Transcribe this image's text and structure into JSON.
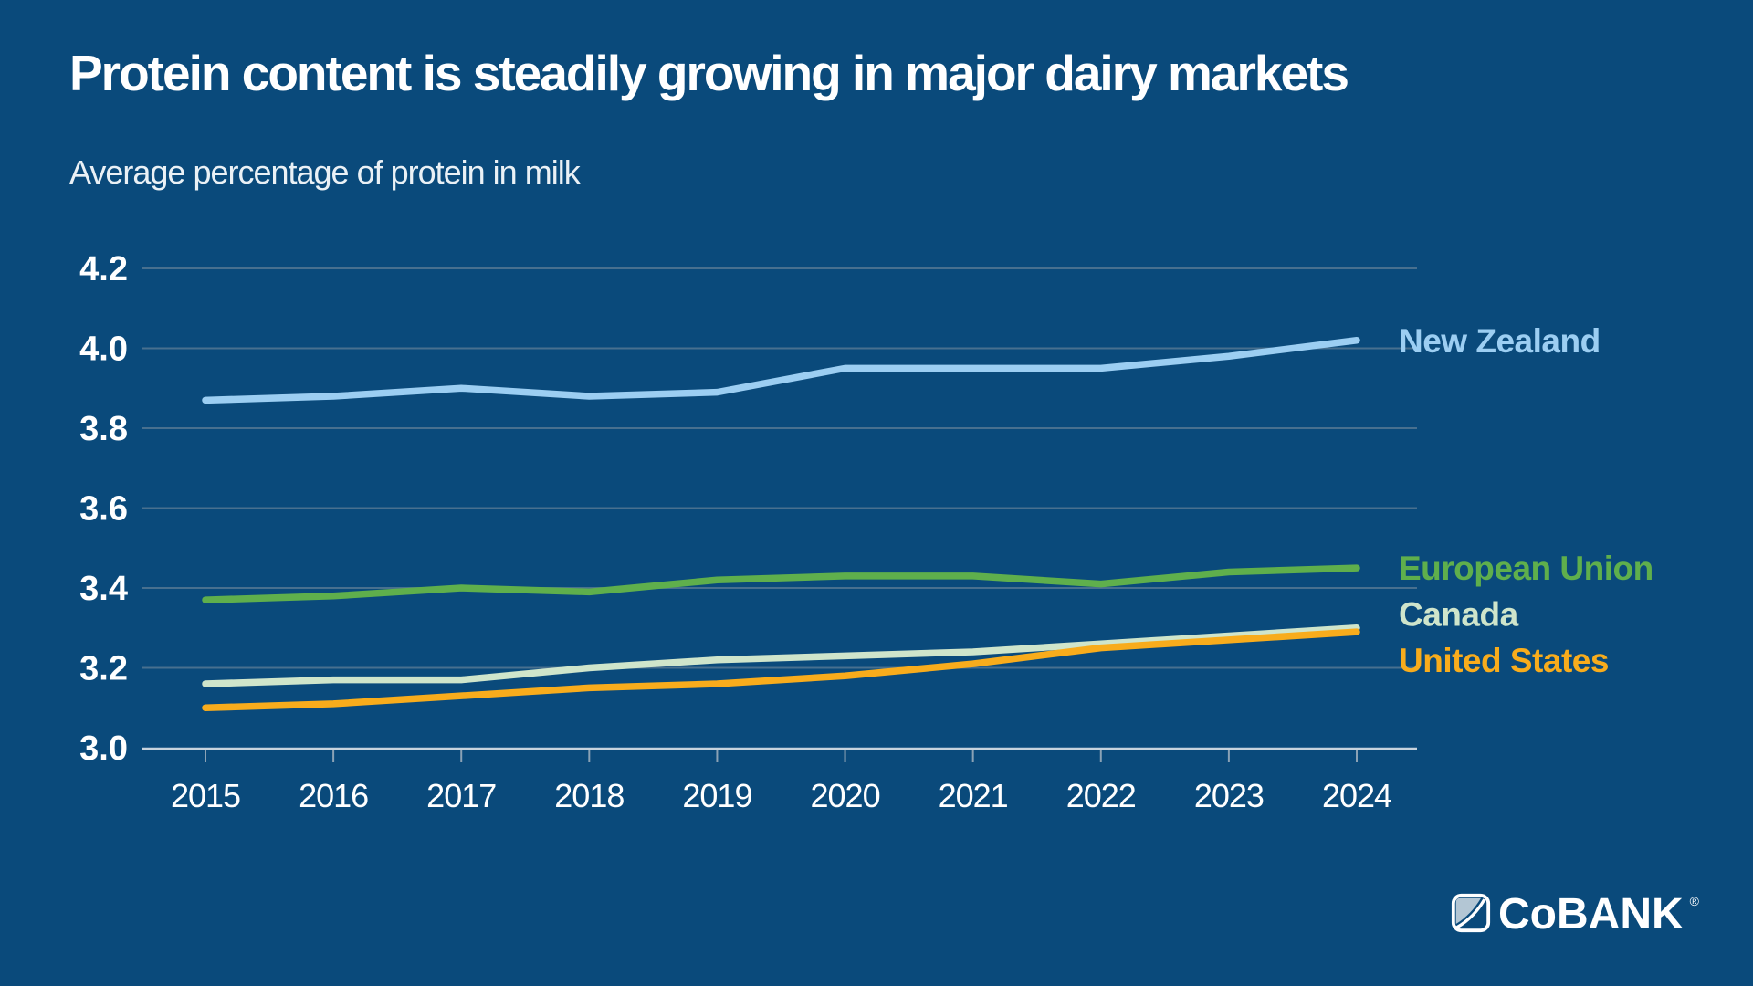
{
  "header": {
    "title": "Protein content is steadily growing in major dairy markets",
    "subtitle": "Average percentage of protein in milk"
  },
  "chart_data": {
    "type": "line",
    "title": "Protein content is steadily growing in major dairy markets",
    "subtitle": "Average percentage of protein in milk",
    "xlabel": "",
    "ylabel": "Average percentage of protein in milk",
    "x": [
      "2015",
      "2016",
      "2017",
      "2018",
      "2019",
      "2020",
      "2021",
      "2022",
      "2023",
      "2024"
    ],
    "series": [
      {
        "name": "New Zealand",
        "color": "#9CCEF2",
        "label_at": 4.02,
        "values": [
          3.87,
          3.88,
          3.9,
          3.88,
          3.89,
          3.95,
          3.95,
          3.95,
          3.98,
          4.02
        ]
      },
      {
        "name": "European Union",
        "color": "#5FAF4C",
        "label_at": 3.45,
        "values": [
          3.37,
          3.38,
          3.4,
          3.39,
          3.42,
          3.43,
          3.43,
          3.41,
          3.44,
          3.45
        ]
      },
      {
        "name": "Canada",
        "color": "#CFE5CB",
        "label_at": 3.335,
        "values": [
          3.16,
          3.17,
          3.17,
          3.2,
          3.22,
          3.23,
          3.24,
          3.26,
          3.28,
          3.3
        ]
      },
      {
        "name": "United States",
        "color": "#F8AC1C",
        "label_at": 3.22,
        "values": [
          3.1,
          3.11,
          3.13,
          3.15,
          3.16,
          3.18,
          3.21,
          3.25,
          3.27,
          3.29
        ]
      }
    ],
    "ylim": [
      3.0,
      4.2
    ],
    "yticks": [
      3.0,
      3.2,
      3.4,
      3.6,
      3.8,
      4.0,
      4.2
    ],
    "ytick_labels": [
      "3.0",
      "3.2",
      "3.4",
      "3.6",
      "3.8",
      "4.0",
      "4.2"
    ],
    "grid": true,
    "legend_position": "right-end-labels"
  },
  "colors": {
    "background": "#0A4A7B",
    "gridline": "#48708F",
    "axis": "#C7D3DD",
    "tick": "#8BA2B5",
    "text": "#FFFFFF"
  },
  "footer": {
    "logo_text": "CoBANK",
    "registered_mark": "®",
    "logo_icon": "cobank-diagonal-square-icon"
  }
}
